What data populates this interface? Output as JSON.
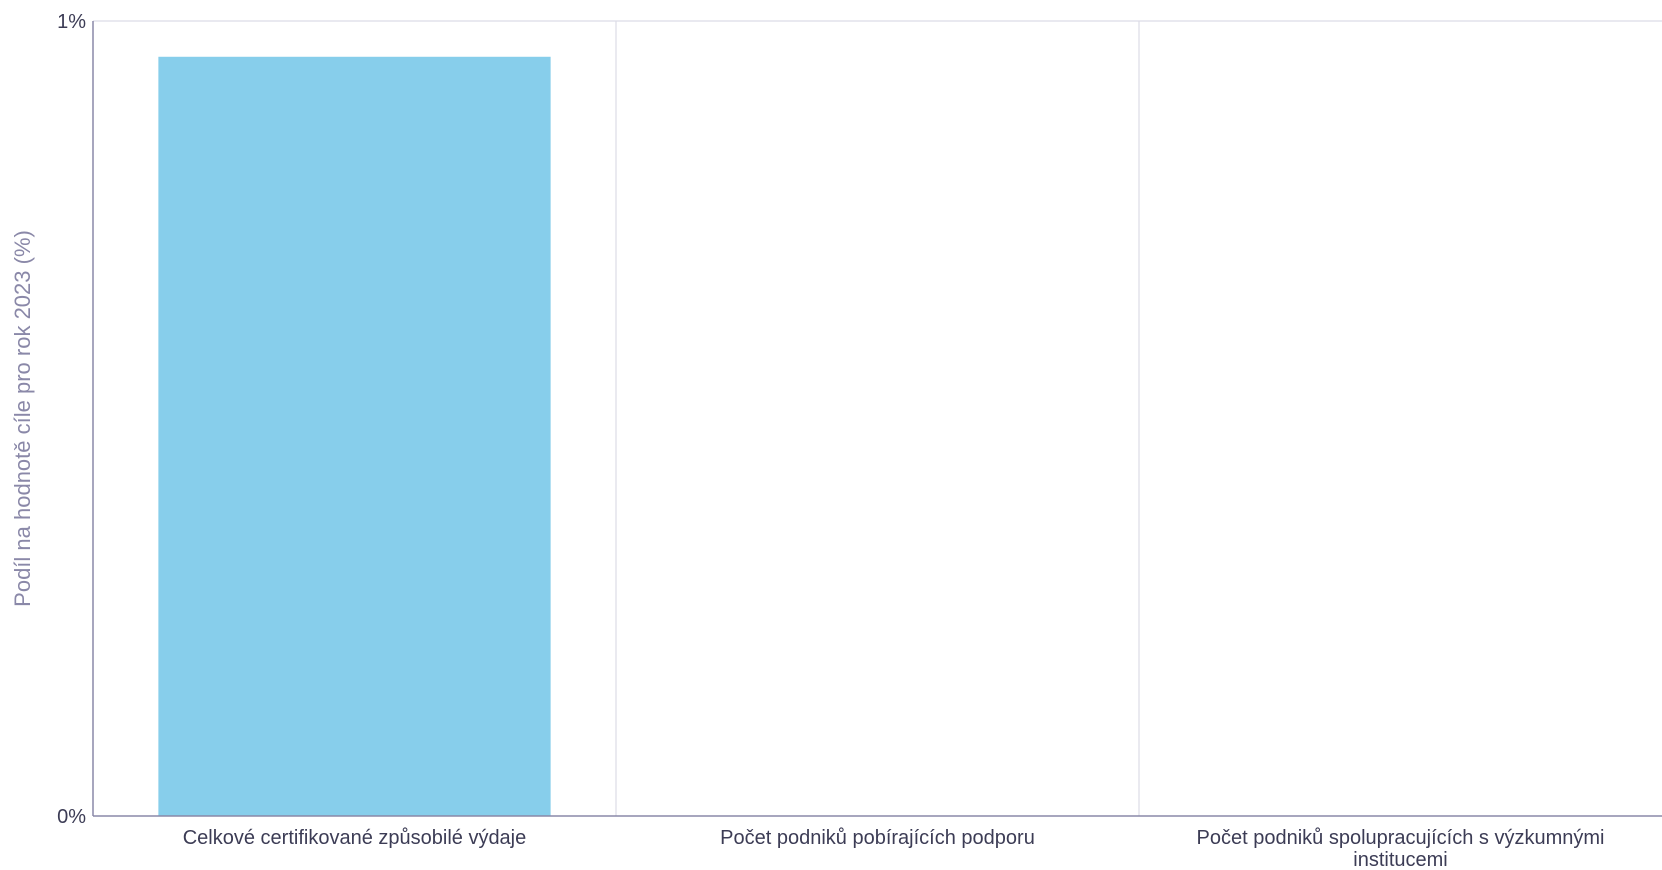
{
  "chart_data": {
    "type": "bar",
    "title": "",
    "xlabel": "",
    "ylabel": "Podíl na hodnotě cíle pro rok 2023 (%)",
    "ylim": [
      0,
      1
    ],
    "yticks": [
      "0%",
      "1%"
    ],
    "grid": true,
    "categories": [
      [
        "Celkové certifikované způsobilé výdaje"
      ],
      [
        "Počet podniků pobírajících podporu"
      ],
      [
        "Počet podniků spolupracujících s výzkumnými",
        "institucemi"
      ]
    ],
    "values": [
      0.955,
      0,
      0
    ],
    "colors": {
      "bar": "#87ceeb",
      "axis": "#8a88a8",
      "grid": "#dcdce6",
      "text": "#3c3c55"
    }
  }
}
